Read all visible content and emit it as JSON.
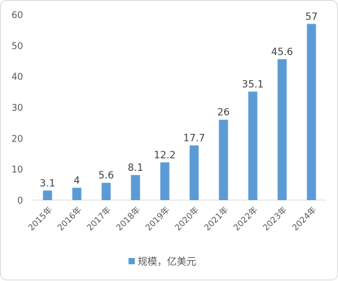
{
  "chart_data": {
    "type": "bar",
    "categories": [
      "2015年",
      "2016年",
      "2017年",
      "2018年",
      "2019年",
      "2020年",
      "2021年",
      "2022年",
      "2023年",
      "2024年"
    ],
    "series": [
      {
        "name": "规模，亿美元",
        "values": [
          3.1,
          4,
          5.6,
          8.1,
          12.2,
          17.7,
          26,
          35.1,
          45.6,
          57
        ],
        "labels": [
          "3.1",
          "4",
          "5.6",
          "8.1",
          "12.2",
          "17.7",
          "26",
          "35.1",
          "45.6",
          "57"
        ],
        "color": "#5b9bd5"
      }
    ],
    "ylim": [
      0,
      60
    ],
    "yticks": [
      "0",
      "10",
      "20",
      "30",
      "40",
      "50",
      "60"
    ],
    "grid": false,
    "legend_position": "bottom"
  }
}
